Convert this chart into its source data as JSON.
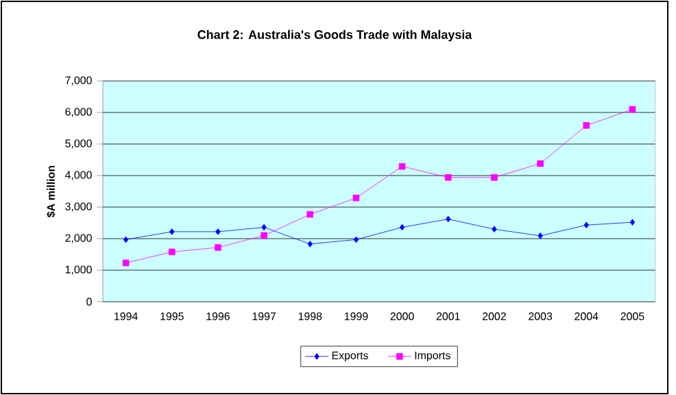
{
  "chart_data": {
    "type": "line",
    "title": "Chart 2: Australia's Goods Trade with Malaysia",
    "ylabel": "$A million",
    "categories": [
      "1994",
      "1995",
      "1996",
      "1997",
      "1998",
      "1999",
      "2000",
      "2001",
      "2002",
      "2003",
      "2004",
      "2005"
    ],
    "series": [
      {
        "name": "Exports",
        "color": "#0000ff",
        "marker": "diamond",
        "values": [
          1970,
          2220,
          2220,
          2360,
          1830,
          1970,
          2360,
          2620,
          2300,
          2090,
          2430,
          2520
        ]
      },
      {
        "name": "Imports",
        "color": "#ff00ff",
        "marker": "square",
        "values": [
          1230,
          1580,
          1720,
          2100,
          2770,
          3290,
          4290,
          3940,
          3940,
          4380,
          5590,
          6100
        ]
      }
    ],
    "ylim": [
      0,
      7000
    ],
    "yticks": [
      {
        "value": 0,
        "label": "0"
      },
      {
        "value": 1000,
        "label": "1,000"
      },
      {
        "value": 2000,
        "label": "2,000"
      },
      {
        "value": 3000,
        "label": "3,000"
      },
      {
        "value": 4000,
        "label": "4,000"
      },
      {
        "value": 5000,
        "label": "5,000"
      },
      {
        "value": 6000,
        "label": "6,000"
      },
      {
        "value": 7000,
        "label": "7,000"
      }
    ],
    "grid": "y",
    "legend": "bottom",
    "line_style": "solid"
  }
}
